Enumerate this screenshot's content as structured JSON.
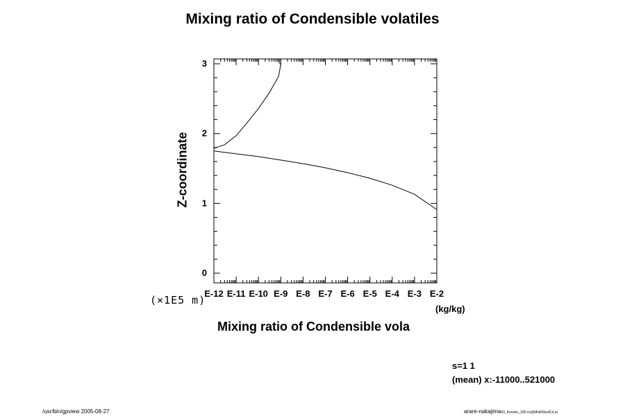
{
  "chart_data": {
    "type": "line",
    "title": "Mixing ratio of Condensible volatiles",
    "xlabel": "Mixing ratio of Condensible vola",
    "ylabel": "Z-coordinate",
    "x_scale": "log",
    "xlim": [
      1e-12,
      0.01
    ],
    "ylim": [
      0,
      3
    ],
    "x_tick_labels": [
      "E-12",
      "E-11",
      "E-10",
      "E-9",
      "E-8",
      "E-7",
      "E-6",
      "E-5",
      "E-4",
      "E-3",
      "E-2"
    ],
    "y_tick_labels": [
      "0",
      "1",
      "2",
      "3"
    ],
    "x_unit": "(kg/kg)",
    "y_scale_note": "(×1E5 m)",
    "series": [
      {
        "x": [
          1e-12,
          3e-12,
          1e-11,
          3e-11,
          1e-10,
          3e-10,
          8e-10,
          1e-09,
          8e-10
        ],
        "y": [
          1.79,
          1.84,
          1.97,
          2.15,
          2.36,
          2.58,
          2.82,
          2.99,
          3.03
        ]
      },
      {
        "x": [
          1e-12,
          1e-11,
          1e-10,
          1e-09,
          1e-08,
          1e-07,
          1e-06,
          1e-05,
          0.0001,
          0.001,
          0.01
        ],
        "y": [
          1.75,
          1.71,
          1.67,
          1.62,
          1.57,
          1.51,
          1.44,
          1.36,
          1.26,
          1.13,
          0.91
        ]
      }
    ]
  },
  "info": {
    "slice": "s=1 1",
    "mean": "(mean) x:-11000..521000"
  },
  "footer": {
    "left": "/usr/bin/gpview 2005-08-27",
    "right_main": "arare-nakajima",
    "right_small": "03_Kessler_180.nc@MixRtSedCd,sc"
  }
}
